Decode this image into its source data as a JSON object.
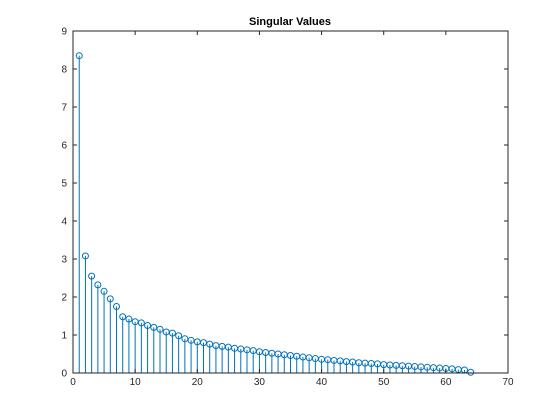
{
  "chart_data": {
    "type": "stem",
    "title": "Singular Values",
    "xlabel": "",
    "ylabel": "",
    "xlim": [
      0,
      70
    ],
    "ylim": [
      0,
      9
    ],
    "xticks": [
      0,
      10,
      20,
      30,
      40,
      50,
      60,
      70
    ],
    "yticks": [
      0,
      1,
      2,
      3,
      4,
      5,
      6,
      7,
      8,
      9
    ],
    "grid": false,
    "color": "#0072bd",
    "x": [
      1,
      2,
      3,
      4,
      5,
      6,
      7,
      8,
      9,
      10,
      11,
      12,
      13,
      14,
      15,
      16,
      17,
      18,
      19,
      20,
      21,
      22,
      23,
      24,
      25,
      26,
      27,
      28,
      29,
      30,
      31,
      32,
      33,
      34,
      35,
      36,
      37,
      38,
      39,
      40,
      41,
      42,
      43,
      44,
      45,
      46,
      47,
      48,
      49,
      50,
      51,
      52,
      53,
      54,
      55,
      56,
      57,
      58,
      59,
      60,
      61,
      62,
      63,
      64
    ],
    "values": [
      8.35,
      3.08,
      2.55,
      2.32,
      2.15,
      1.95,
      1.75,
      1.48,
      1.42,
      1.35,
      1.32,
      1.25,
      1.2,
      1.15,
      1.08,
      1.05,
      0.98,
      0.9,
      0.86,
      0.82,
      0.8,
      0.76,
      0.72,
      0.7,
      0.68,
      0.65,
      0.63,
      0.61,
      0.59,
      0.56,
      0.54,
      0.52,
      0.5,
      0.48,
      0.46,
      0.44,
      0.42,
      0.4,
      0.38,
      0.36,
      0.35,
      0.33,
      0.32,
      0.3,
      0.29,
      0.27,
      0.26,
      0.25,
      0.24,
      0.22,
      0.21,
      0.2,
      0.19,
      0.18,
      0.17,
      0.16,
      0.15,
      0.14,
      0.13,
      0.12,
      0.11,
      0.09,
      0.08,
      0.02
    ]
  }
}
